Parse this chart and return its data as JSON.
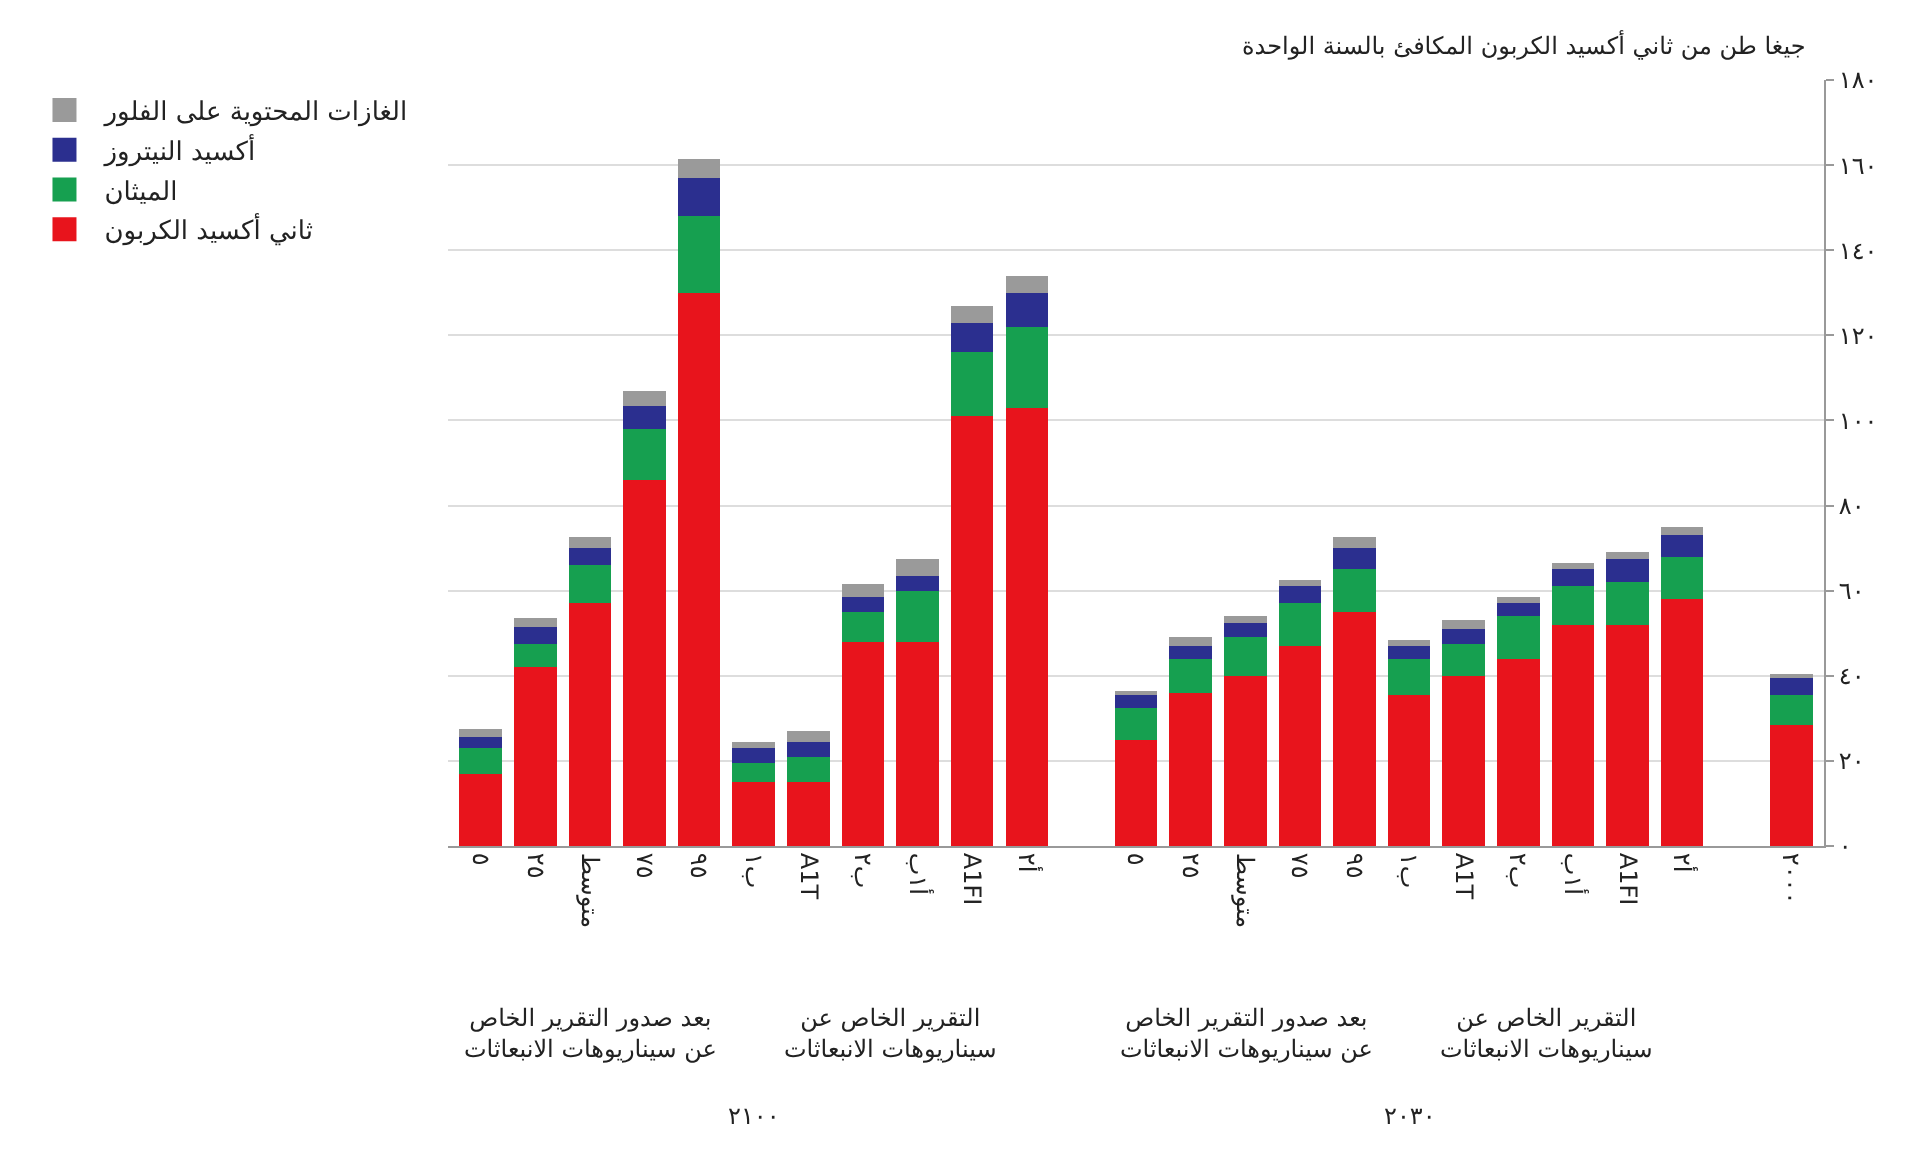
{
  "chart_data": {
    "type": "bar",
    "stacked": true,
    "ylabel": "جيغا طن من ثاني أكسيد الكربون المكافئ بالسنة الواحدة",
    "categories": [
      "٥",
      "٢٥",
      "متوسط",
      "٧٥",
      "٩٥",
      "ب١",
      "A1T",
      "ب٢",
      "أ١ب",
      "A1FI",
      "أ٢",
      null,
      "٥",
      "٢٥",
      "متوسط",
      "٧٥",
      "٩٥",
      "ب١",
      "A1T",
      "ب٢",
      "أ١ب",
      "A1FI",
      "أ٢",
      null,
      "٢٠٠٠"
    ],
    "series": [
      {
        "name": "ثاني أكسيد الكربون",
        "color": "#e8141c",
        "values": [
          17,
          42,
          57,
          86,
          130,
          15,
          15,
          48,
          48,
          101,
          103,
          null,
          25,
          36,
          40,
          47,
          55,
          35.5,
          40,
          44,
          52,
          52,
          58,
          null,
          28.5
        ]
      },
      {
        "name": "الميثان",
        "color": "#16a050",
        "values": [
          6,
          5.5,
          9,
          12,
          18,
          4.5,
          6,
          7,
          12,
          15,
          19,
          null,
          7.5,
          8,
          9,
          10,
          10,
          8.5,
          7.5,
          10,
          9,
          10,
          10,
          null,
          7
        ]
      },
      {
        "name": "أكسيد النيتروز",
        "color": "#2b2f8f",
        "values": [
          2.5,
          4,
          4,
          5.5,
          9,
          3.5,
          3.5,
          3.5,
          3.5,
          7,
          8,
          null,
          3,
          3,
          3.5,
          4,
          5,
          3,
          3.5,
          3,
          4,
          5.5,
          5,
          null,
          4
        ]
      },
      {
        "name": "الغازات المحتوية على الفلور",
        "color": "#9a9a9a",
        "values": [
          2,
          2,
          2.5,
          3.5,
          4.5,
          1.5,
          2.5,
          3,
          4,
          4,
          4,
          null,
          1,
          2,
          1.5,
          1.5,
          2.5,
          1.5,
          2,
          1.5,
          1.5,
          1.5,
          2,
          null,
          1
        ]
      }
    ],
    "ylim": [
      0,
      180
    ],
    "yticks": [
      {
        "value": 0,
        "label": "٠"
      },
      {
        "value": 20,
        "label": "٢٠"
      },
      {
        "value": 40,
        "label": "٤٠"
      },
      {
        "value": 60,
        "label": "٦٠"
      },
      {
        "value": 80,
        "label": "٨٠"
      },
      {
        "value": 100,
        "label": "١٠٠"
      },
      {
        "value": 120,
        "label": "١٢٠"
      },
      {
        "value": 140,
        "label": "١٤٠"
      },
      {
        "value": 160,
        "label": "١٦٠"
      },
      {
        "value": 180,
        "label": "١٨٠"
      }
    ],
    "grid": "y",
    "legend": "left",
    "annotations": [
      "بعد صدور التقرير الخاص عن سيناريوهات الانبعاثات",
      "التقرير الخاص عن سيناريوهات الانبعاثات",
      "٢١٠٠",
      "بعد صدور التقرير الخاص عن سيناريوهات الانبعاثات",
      "التقرير الخاص عن سيناريوهات الانبعاثات",
      "٢٠٣٠"
    ]
  }
}
